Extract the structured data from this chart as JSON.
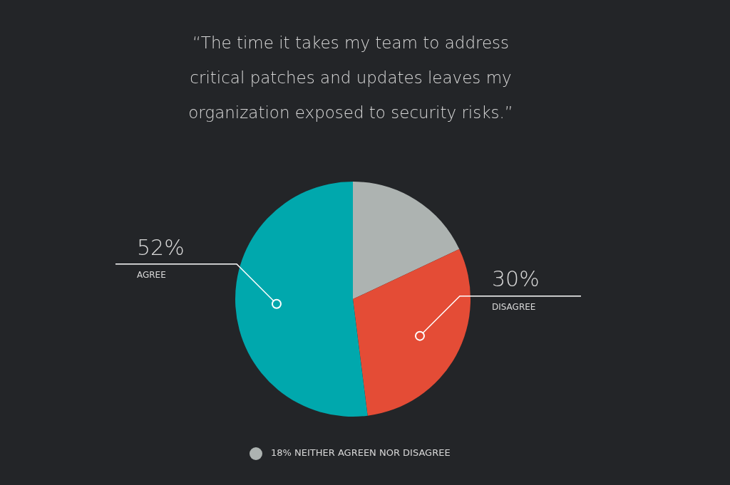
{
  "chart_data": {
    "type": "pie",
    "title": "“The time it takes my team to address critical patches and updates leaves my organization exposed to security risks.”",
    "categories": [
      "NEITHER AGREEN NOR DISAGREE",
      "DISAGREE",
      "AGREE"
    ],
    "values": [
      18,
      30,
      52
    ],
    "colors": [
      "#adb3b1",
      "#e44c36",
      "#00a8ad"
    ],
    "value_labels": [
      "18%",
      "30%",
      "52%"
    ]
  }
}
